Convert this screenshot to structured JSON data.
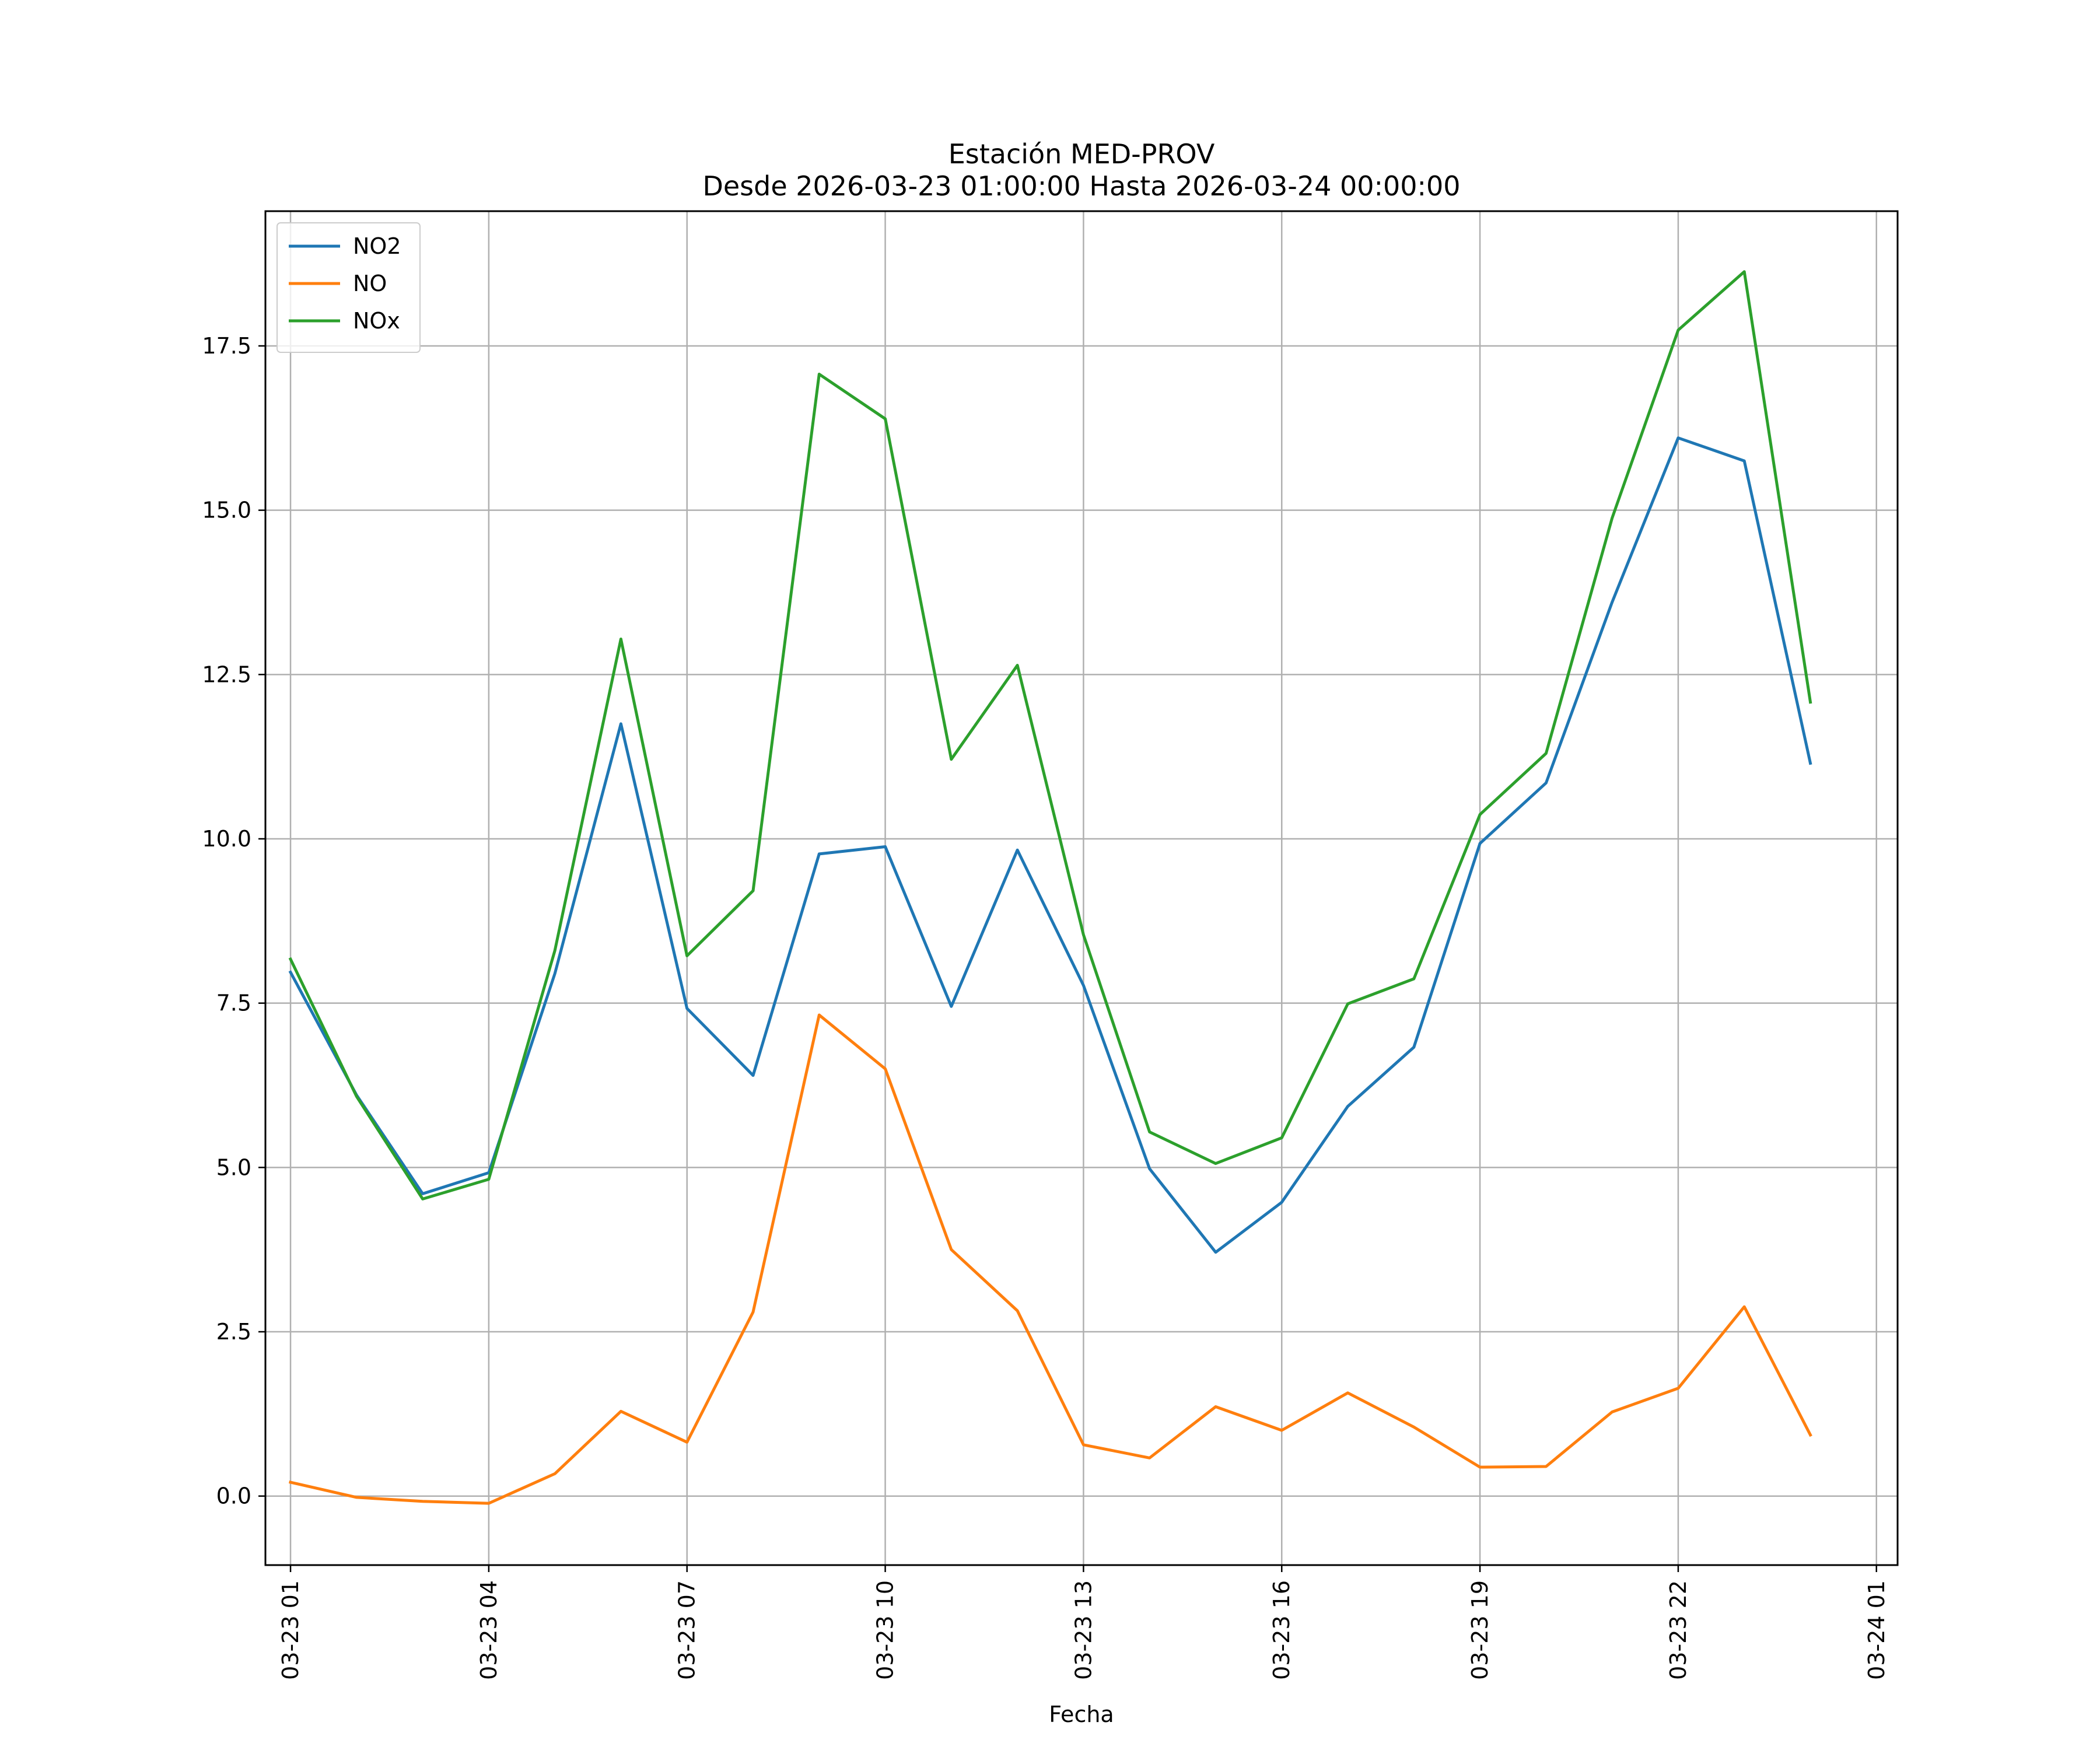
{
  "chart_data": {
    "type": "line",
    "title": "Estación MED-PROV",
    "subtitle": "Desde 2026-03-23 01:00:00 Hasta 2026-03-24 00:00:00",
    "xlabel": "Fecha",
    "ylabel": "",
    "x": [
      "03-23 01",
      "03-23 02",
      "03-23 03",
      "03-23 04",
      "03-23 05",
      "03-23 06",
      "03-23 07",
      "03-23 08",
      "03-23 09",
      "03-23 10",
      "03-23 11",
      "03-23 12",
      "03-23 13",
      "03-23 14",
      "03-23 15",
      "03-23 16",
      "03-23 17",
      "03-23 18",
      "03-23 19",
      "03-23 20",
      "03-23 21",
      "03-23 22",
      "03-23 23",
      "03-24 00"
    ],
    "x_ticks": [
      "03-23 01",
      "03-23 04",
      "03-23 07",
      "03-23 10",
      "03-23 13",
      "03-23 16",
      "03-23 19",
      "03-23 22",
      "03-24 01"
    ],
    "x_range_hours": [
      -0.38,
      24.32
    ],
    "y_ticks": [
      "0.0",
      "2.5",
      "5.0",
      "7.5",
      "10.0",
      "12.5",
      "15.0",
      "17.5"
    ],
    "ylim": [
      -1.05,
      19.55
    ],
    "grid": true,
    "legend_position": "top-left",
    "series": [
      {
        "name": "NO2",
        "color": "#1f77b4",
        "values": [
          7.97,
          6.1,
          4.6,
          4.92,
          7.95,
          11.75,
          7.42,
          6.4,
          9.77,
          9.88,
          7.45,
          9.83,
          7.77,
          4.98,
          3.71,
          4.47,
          5.93,
          6.83,
          9.93,
          10.85,
          13.6,
          16.1,
          15.75,
          11.15
        ]
      },
      {
        "name": "NO",
        "color": "#ff7f0e",
        "values": [
          0.21,
          -0.02,
          -0.08,
          -0.11,
          0.34,
          1.29,
          0.82,
          2.8,
          7.32,
          6.5,
          3.75,
          2.82,
          0.78,
          0.58,
          1.36,
          1.0,
          1.57,
          1.05,
          0.44,
          0.45,
          1.28,
          1.64,
          2.88,
          0.93
        ]
      },
      {
        "name": "NOx",
        "color": "#2ca02c",
        "values": [
          8.17,
          6.08,
          4.52,
          4.82,
          8.3,
          13.04,
          8.22,
          9.21,
          17.07,
          16.39,
          11.21,
          12.64,
          8.54,
          5.54,
          5.06,
          5.45,
          7.49,
          7.87,
          10.37,
          11.3,
          14.88,
          17.74,
          18.63,
          12.08
        ]
      }
    ]
  }
}
